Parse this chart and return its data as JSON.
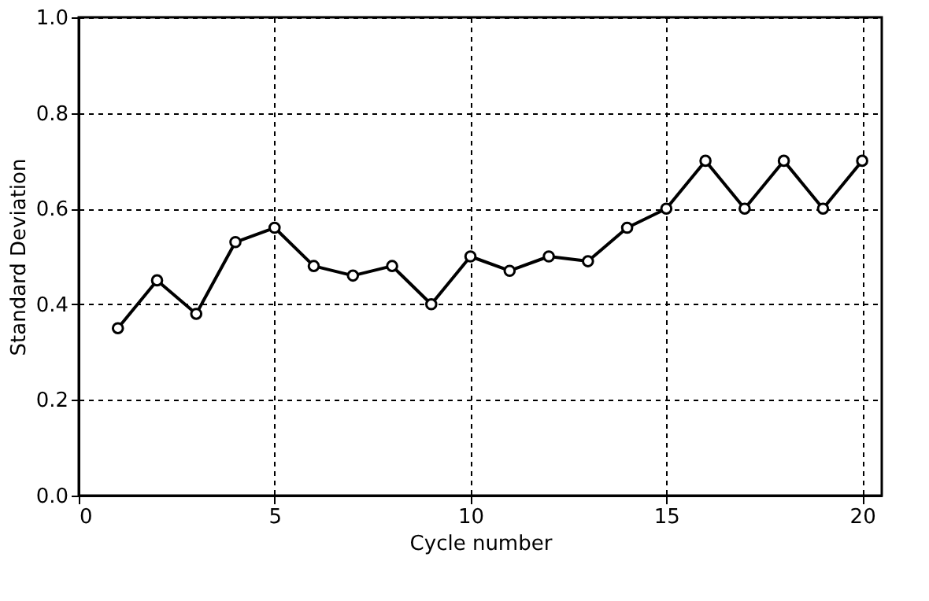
{
  "chart_data": {
    "type": "line",
    "xlabel": "Cycle number",
    "ylabel": "Standard Deviation",
    "x": [
      1,
      2,
      3,
      4,
      5,
      6,
      7,
      8,
      9,
      10,
      11,
      12,
      13,
      14,
      15,
      16,
      17,
      18,
      19,
      20
    ],
    "series": [
      {
        "color": "#000000",
        "values": [
          0.35,
          0.45,
          0.38,
          0.53,
          0.56,
          0.48,
          0.46,
          0.48,
          0.4,
          0.5,
          0.47,
          0.5,
          0.49,
          0.56,
          0.6,
          0.7,
          0.6,
          0.7,
          0.6,
          0.7
        ]
      }
    ],
    "xlim": [
      0,
      20.5
    ],
    "xticks": [
      0,
      5,
      10,
      15,
      20
    ],
    "ylim": [
      0,
      1.0
    ],
    "yticks": [
      {
        "value": 0,
        "label": "0.0"
      },
      {
        "value": 0.2,
        "label": "0.2"
      },
      {
        "value": 0.4,
        "label": "0.4"
      },
      {
        "value": 0.6,
        "label": "0.6"
      },
      {
        "value": 0.8,
        "label": "0.8"
      },
      {
        "value": 1,
        "label": "1.0"
      }
    ],
    "grid": true,
    "marker": "circle",
    "line_style": "solid"
  }
}
